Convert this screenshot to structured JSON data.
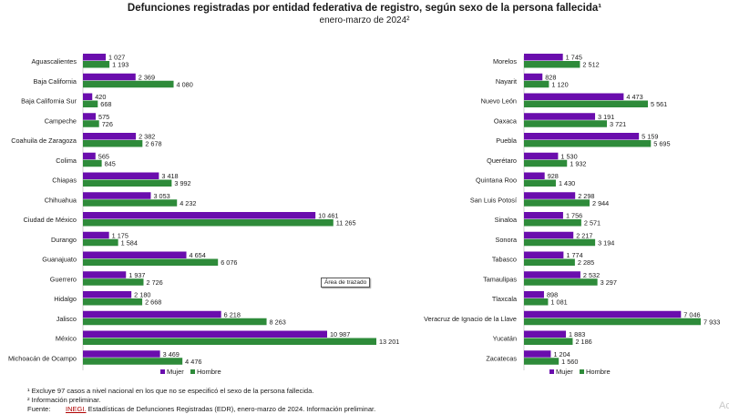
{
  "title": "Defunciones registradas por entidad federativa de registro, según sexo de la persona fallecida¹",
  "subtitle": "enero-marzo de 2024²",
  "tooltip": "Área de trazado",
  "notes": {
    "note1": "¹ Excluye 97 casos a nivel nacional en los que no se especificó el sexo de la persona fallecida.",
    "note2": "² Información preliminar.",
    "source_label": "Fuente:",
    "source_org": "INEGI.",
    "source_text": " Estadísticas de Defunciones Registradas (EDR), enero-marzo de 2024. Información preliminar."
  },
  "corner_text": "Ac",
  "colors": {
    "mujer": "#6a0dad",
    "hombre": "#2e8b3a"
  },
  "chart_data": [
    {
      "type": "bar",
      "orientation": "horizontal",
      "categories": [
        "Aguascalientes",
        "Baja California",
        "Baja California Sur",
        "Campeche",
        "Coahuila de Zaragoza",
        "Colima",
        "Chiapas",
        "Chihuahua",
        "Ciudad de México",
        "Durango",
        "Guanajuato",
        "Guerrero",
        "Hidalgo",
        "Jalisco",
        "México",
        "Michoacán de Ocampo"
      ],
      "series": [
        {
          "name": "Mujer",
          "values": [
            1027,
            2369,
            420,
            575,
            2382,
            565,
            3418,
            3053,
            10461,
            1175,
            4654,
            1937,
            2180,
            6218,
            10987,
            3469
          ],
          "labels": [
            "1 027",
            "2 369",
            "420",
            "575",
            "2 382",
            "565",
            "3 418",
            "3 053",
            "10 461",
            "1 175",
            "4 654",
            "1 937",
            "2 180",
            "6 218",
            "10 987",
            "3 469"
          ]
        },
        {
          "name": "Hombre",
          "values": [
            1193,
            4080,
            668,
            726,
            2678,
            845,
            3992,
            4232,
            11265,
            1584,
            6076,
            2726,
            2668,
            8263,
            13201,
            4476
          ],
          "labels": [
            "1 193",
            "4 080",
            "668",
            "726",
            "2 678",
            "845",
            "3 992",
            "4 232",
            "11 265",
            "1 584",
            "6 076",
            "2 726",
            "2 668",
            "8 263",
            "13 201",
            "4 476"
          ]
        }
      ],
      "legend": "bottom"
    },
    {
      "type": "bar",
      "orientation": "horizontal",
      "categories": [
        "Morelos",
        "Nayarit",
        "Nuevo León",
        "Oaxaca",
        "Puebla",
        "Querétaro",
        "Quintana Roo",
        "San Luis Potosí",
        "Sinaloa",
        "Sonora",
        "Tabasco",
        "Tamaulipas",
        "Tlaxcala",
        "Veracruz de Ignacio de la Llave",
        "Yucatán",
        "Zacatecas"
      ],
      "series": [
        {
          "name": "Mujer",
          "values": [
            1745,
            828,
            4473,
            3191,
            5159,
            1530,
            928,
            2298,
            1756,
            2217,
            1774,
            2532,
            898,
            7046,
            1883,
            1204
          ],
          "labels": [
            "1 745",
            "828",
            "4 473",
            "3 191",
            "5 159",
            "1 530",
            "928",
            "2 298",
            "1 756",
            "2 217",
            "1 774",
            "2 532",
            "898",
            "7 046",
            "1 883",
            "1 204"
          ]
        },
        {
          "name": "Hombre",
          "values": [
            2512,
            1120,
            5561,
            3721,
            5695,
            1932,
            1430,
            2944,
            2571,
            3194,
            2285,
            3297,
            1081,
            7933,
            2186,
            1560
          ],
          "labels": [
            "2 512",
            "1 120",
            "5 561",
            "3 721",
            "5 695",
            "1 932",
            "1 430",
            "2 944",
            "2 571",
            "3 194",
            "2 285",
            "3 297",
            "1 081",
            "7 933",
            "2 186",
            "1 560"
          ]
        }
      ],
      "legend": "bottom"
    }
  ]
}
